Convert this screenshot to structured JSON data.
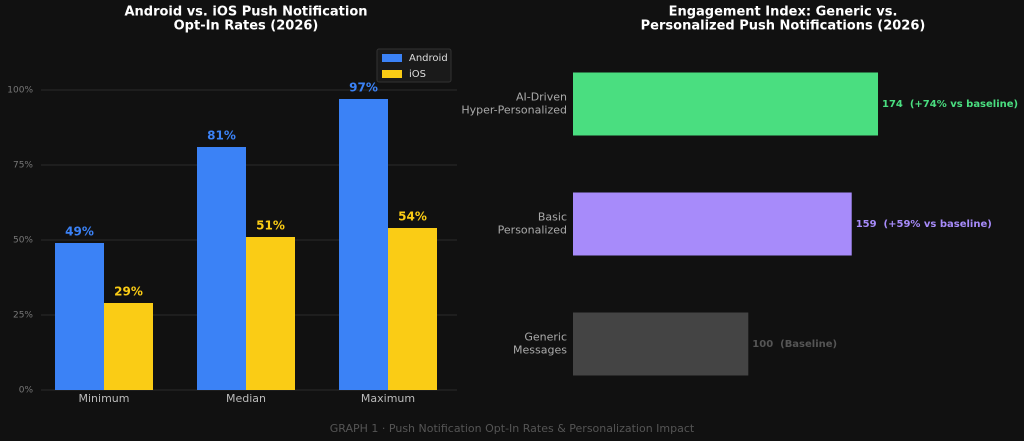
{
  "chart_data": [
    {
      "type": "bar",
      "title": [
        "Android vs. iOS Push Notification",
        "Opt-In Rates (2026)"
      ],
      "categories": [
        "Minimum",
        "Median",
        "Maximum"
      ],
      "series": [
        {
          "name": "Android",
          "color": "#3b82f6",
          "values": [
            49,
            81,
            97
          ],
          "value_labels": [
            "49%",
            "81%",
            "97%"
          ]
        },
        {
          "name": "iOS",
          "color": "#facc15",
          "values": [
            29,
            51,
            54
          ],
          "value_labels": [
            "29%",
            "51%",
            "54%"
          ]
        }
      ],
      "ylim": [
        0,
        115
      ],
      "yticks": [
        {
          "value": 0,
          "label": "0%"
        },
        {
          "value": 25,
          "label": "25%"
        },
        {
          "value": 50,
          "label": "50%"
        },
        {
          "value": 75,
          "label": "75%"
        },
        {
          "value": 100,
          "label": "100%"
        }
      ],
      "grid": true,
      "legend": "upper right"
    },
    {
      "type": "hbar",
      "title": [
        "Engagement Index: Generic vs.",
        "Personalized Push Notifications (2026)"
      ],
      "categories": [
        "AI-Driven\nHyper-Personalized",
        "Basic\nPersonalized",
        "Generic\nMessages"
      ],
      "values": [
        174,
        159,
        100
      ],
      "value_labels": [
        "174  (+74% vs baseline)",
        "159  (+59% vs baseline)",
        "100  (Baseline)"
      ],
      "colors": [
        "#4ade80",
        "#a78bfa",
        "#444444"
      ],
      "xlim": [
        0,
        255
      ]
    }
  ],
  "footer": "GRAPH 1  ·  Push Notification Opt-In Rates & Personalization Impact"
}
